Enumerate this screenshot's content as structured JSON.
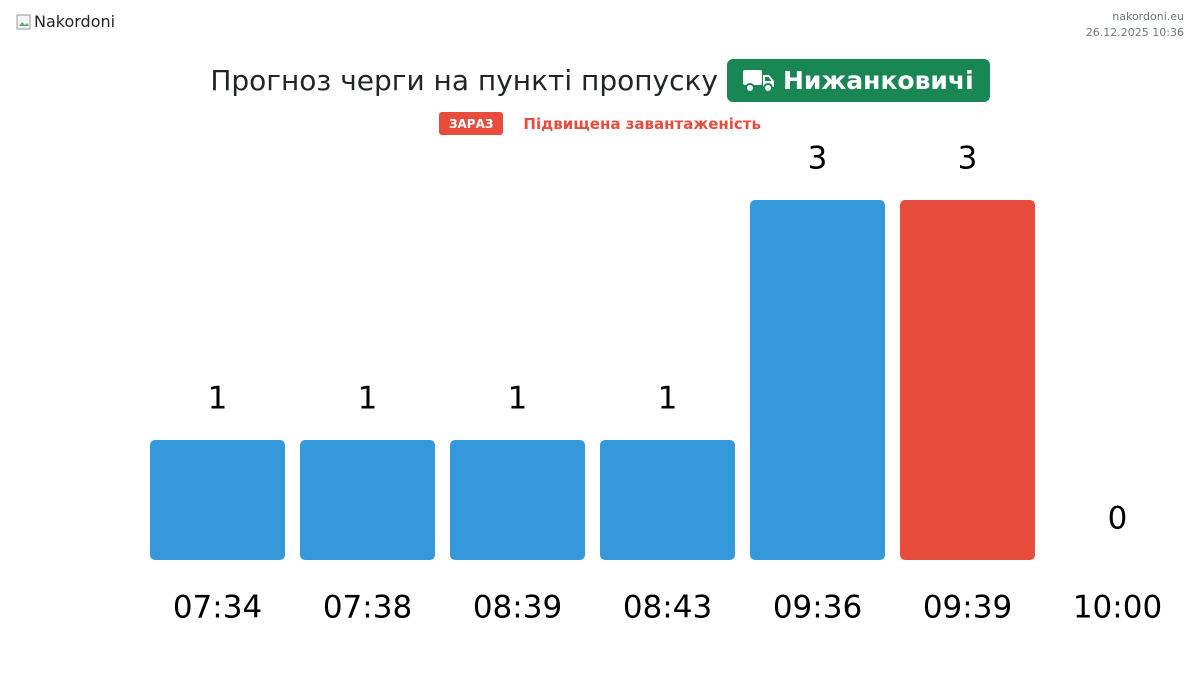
{
  "logo_alt": "Nakordoni",
  "site": "nakordoni.eu",
  "datetime": "26.12.2025 10:36",
  "badge": "ЗАРАЗ",
  "status": "Підвищена завантаженість",
  "chart_data": {
    "type": "bar",
    "title": "Прогноз черги на пункті пропуску",
    "checkpoint": "Нижанковичі",
    "categories": [
      "07:34",
      "07:38",
      "08:39",
      "08:43",
      "09:36",
      "09:39",
      "10:00"
    ],
    "values": [
      1,
      1,
      1,
      1,
      3,
      3,
      0
    ],
    "colors": [
      "#3498db",
      "#3498db",
      "#3498db",
      "#3498db",
      "#3498db",
      "#e74c3c",
      "#3498db"
    ]
  }
}
